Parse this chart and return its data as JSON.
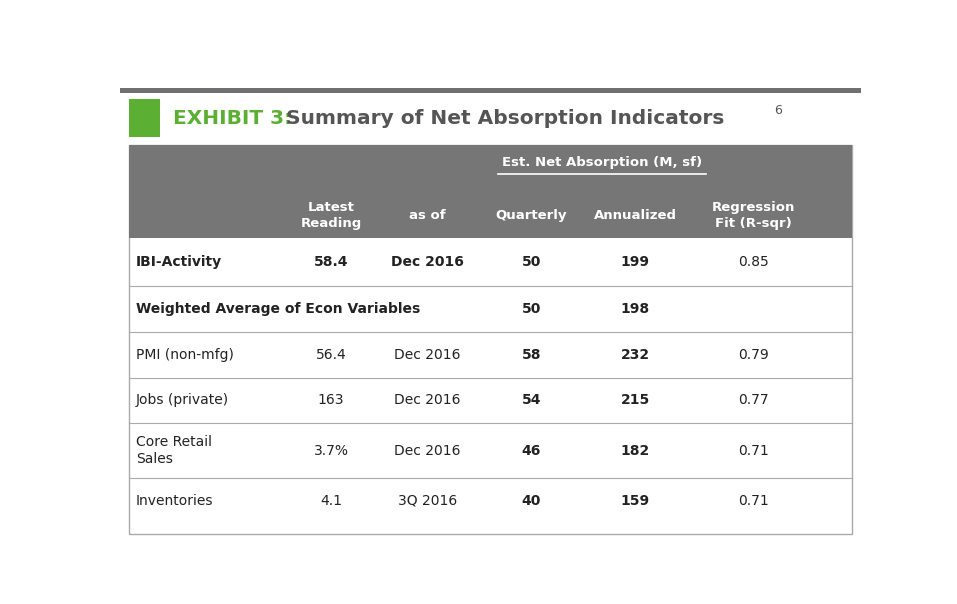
{
  "title_exhibit": "EXHIBIT 3:",
  "title_main": " Summary of Net Absorption Indicators",
  "title_superscript": "6",
  "header_bg_color": "#767676",
  "title_bar_green": "#5bb033",
  "sep_color": "#aaaaaa",
  "col_x": {
    "label": 0.022,
    "latest": 0.285,
    "as_of": 0.415,
    "quarterly": 0.555,
    "annualized": 0.695,
    "rsqr": 0.855
  },
  "rows": [
    {
      "label": "IBI-Activity",
      "latest": "58.4",
      "as_of": "Dec 2016",
      "quarterly": "50",
      "annualized": "199",
      "rsqr": "0.85",
      "label_bold": true,
      "data_bold": true,
      "rsqr_bold": false,
      "separator_below": true
    },
    {
      "label": "Weighted Average of Econ Variables",
      "latest": "",
      "as_of": "",
      "quarterly": "50",
      "annualized": "198",
      "rsqr": "",
      "label_bold": true,
      "data_bold": true,
      "rsqr_bold": false,
      "separator_below": true
    },
    {
      "label": "PMI (non-mfg)",
      "latest": "56.4",
      "as_of": "Dec 2016",
      "quarterly": "58",
      "annualized": "232",
      "rsqr": "0.79",
      "label_bold": false,
      "data_bold": false,
      "rsqr_bold": false,
      "separator_below": true
    },
    {
      "label": "Jobs (private)",
      "latest": "163",
      "as_of": "Dec 2016",
      "quarterly": "54",
      "annualized": "215",
      "rsqr": "0.77",
      "label_bold": false,
      "data_bold": false,
      "rsqr_bold": false,
      "separator_below": true
    },
    {
      "label": "Core Retail\nSales",
      "latest": "3.7%",
      "as_of": "Dec 2016",
      "quarterly": "46",
      "annualized": "182",
      "rsqr": "0.71",
      "label_bold": false,
      "data_bold": false,
      "rsqr_bold": false,
      "separator_below": true
    },
    {
      "label": "Inventories",
      "latest": "4.1",
      "as_of": "3Q 2016",
      "quarterly": "40",
      "annualized": "159",
      "rsqr": "0.71",
      "label_bold": false,
      "data_bold": false,
      "rsqr_bold": false,
      "separator_below": false
    }
  ]
}
